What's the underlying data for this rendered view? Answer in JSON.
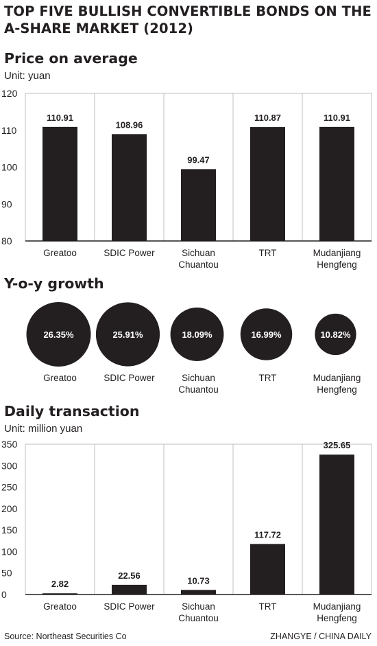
{
  "title": "TOP FIVE BULLISH CONVERTIBLE BONDS ON THE A-SHARE MARKET (2012)",
  "sections": {
    "price": {
      "title": "Price on average",
      "unit": "Unit: yuan"
    },
    "growth": {
      "title": "Y-o-y growth"
    },
    "daily": {
      "title": "Daily transaction",
      "unit": "Unit: million yuan"
    }
  },
  "source": "Source: Northeast Securities Co",
  "credit": "ZHANGYE / CHINA DAILY",
  "colors": {
    "bar": "#231f20",
    "grid": "#bfbfbf",
    "axis": "#231f20",
    "label_on_bubble": "#ffffff"
  },
  "chart_data": [
    {
      "type": "bar",
      "title": "Price on average",
      "ylabel": "Unit: yuan",
      "categories": [
        "Greatoo",
        "SDIC Power",
        "Sichuan Chuantou",
        "TRT",
        "Mudanjiang Hengfeng"
      ],
      "category_lines": [
        [
          "Greatoo"
        ],
        [
          "SDIC Power"
        ],
        [
          "Sichuan",
          "Chuantou"
        ],
        [
          "TRT"
        ],
        [
          "Mudanjiang",
          "Hengfeng"
        ]
      ],
      "values": [
        110.91,
        108.96,
        99.47,
        110.87,
        110.91
      ],
      "data_labels": [
        "110.91",
        "108.96",
        "99.47",
        "110.87",
        "110.91"
      ],
      "ylim": [
        80,
        120
      ],
      "yticks": [
        80,
        90,
        100,
        110,
        120
      ],
      "grid": "vertical category separators"
    },
    {
      "type": "bubble",
      "title": "Y-o-y growth",
      "categories": [
        "Greatoo",
        "SDIC Power",
        "Sichuan Chuantou",
        "TRT",
        "Mudanjiang Hengfeng"
      ],
      "category_lines": [
        [
          "Greatoo"
        ],
        [
          "SDIC Power"
        ],
        [
          "Sichuan",
          "Chuantou"
        ],
        [
          "TRT"
        ],
        [
          "Mudanjiang",
          "Hengfeng"
        ]
      ],
      "values": [
        26.35,
        25.91,
        18.09,
        16.99,
        10.82
      ],
      "data_labels": [
        "26.35%",
        "25.91%",
        "18.09%",
        "16.99%",
        "10.82%"
      ]
    },
    {
      "type": "bar",
      "title": "Daily transaction",
      "ylabel": "Unit: million yuan",
      "categories": [
        "Greatoo",
        "SDIC Power",
        "Sichuan Chuantou",
        "TRT",
        "Mudanjiang Hengfeng"
      ],
      "category_lines": [
        [
          "Greatoo"
        ],
        [
          "SDIC Power"
        ],
        [
          "Sichuan",
          "Chuantou"
        ],
        [
          "TRT"
        ],
        [
          "Mudanjiang",
          "Hengfeng"
        ]
      ],
      "values": [
        2.82,
        22.56,
        10.73,
        117.72,
        325.65
      ],
      "data_labels": [
        "2.82",
        "22.56",
        "10.73",
        "117.72",
        "325.65"
      ],
      "ylim": [
        0,
        350
      ],
      "yticks": [
        0,
        50,
        100,
        150,
        200,
        250,
        300,
        350
      ],
      "grid": "vertical category separators"
    }
  ]
}
